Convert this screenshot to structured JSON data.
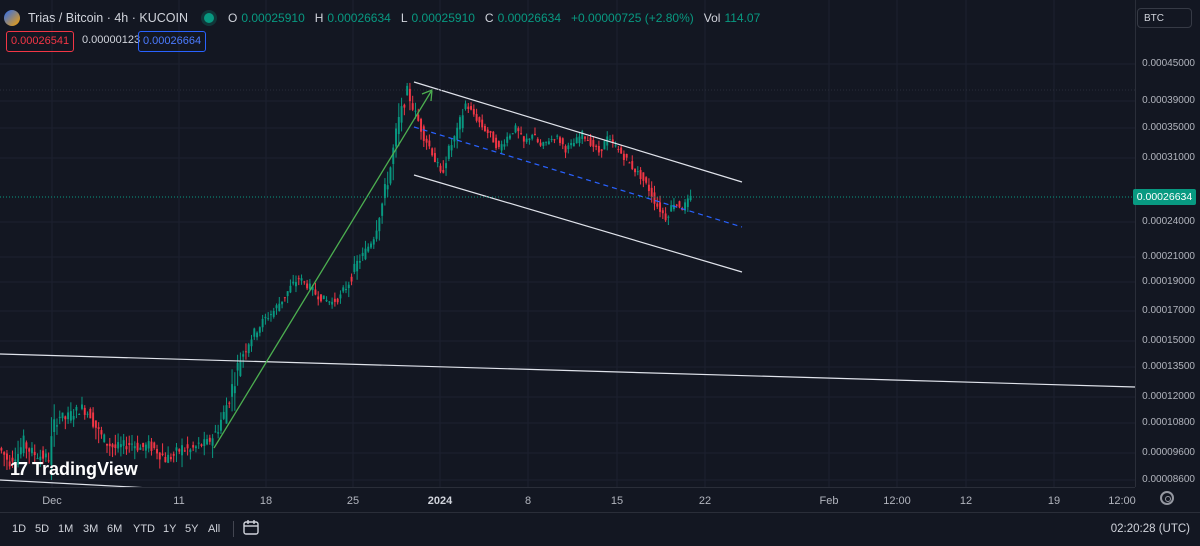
{
  "legend": {
    "symbol": "Trias / Bitcoin · 4h · KUCOIN",
    "o_label": "O",
    "o_value": "0.00025910",
    "h_label": "H",
    "h_value": "0.00026634",
    "l_label": "L",
    "l_value": "0.00025910",
    "c_label": "C",
    "c_value": "0.00026634",
    "change": "+0.00000725 (+2.80%)",
    "vol_label": "Vol",
    "vol_value": "114.07"
  },
  "quote": {
    "bid": "0.00026541",
    "spread": "0.00000123",
    "ask": "0.00026664"
  },
  "currency_button": "BTC",
  "current_price": "0.00026634",
  "watermark": "TradingView",
  "clock": "02:20:28 (UTC)",
  "timeframes": [
    "1D",
    "5D",
    "1M",
    "3M",
    "6M",
    "YTD",
    "1Y",
    "5Y",
    "All"
  ],
  "colors": {
    "up": "#089981",
    "down": "#f23645",
    "background": "#131722",
    "arrow": "#4caf50",
    "midline": "#2962ff"
  },
  "icons": {
    "settings": "gear-icon",
    "goto_date": "calendar-icon"
  },
  "chart_data": {
    "type": "candlestick",
    "symbol": "Trias / Bitcoin",
    "interval": "4h",
    "exchange": "KUCOIN",
    "y_ticks": [
      "0.00045000",
      "0.00039000",
      "0.00035000",
      "0.00031000",
      "0.00024000",
      "0.00021000",
      "0.00019000",
      "0.00017000",
      "0.00015000",
      "0.00013500",
      "0.00012000",
      "0.00010800",
      "0.00009600",
      "0.00008600"
    ],
    "x_ticks": [
      {
        "label": "Dec",
        "bold": false
      },
      {
        "label": "11",
        "bold": false
      },
      {
        "label": "18",
        "bold": false
      },
      {
        "label": "25",
        "bold": false
      },
      {
        "label": "2024",
        "bold": true
      },
      {
        "label": "8",
        "bold": false
      },
      {
        "label": "15",
        "bold": false
      },
      {
        "label": "22",
        "bold": false
      },
      {
        "label": "Feb",
        "bold": false
      },
      {
        "label": "12:00",
        "bold": false
      },
      {
        "label": "12",
        "bold": false
      },
      {
        "label": "19",
        "bold": false
      },
      {
        "label": "12:00",
        "bold": false
      }
    ],
    "price_path": [
      [
        9.8e-05,
        9.4e-05
      ],
      [
        9.2e-05,
        9.6e-05
      ],
      [
        9.4e-05,
        0.0001
      ],
      [
        0.0001,
        9.6e-05
      ],
      [
        9.6e-05,
        9.5e-05
      ],
      [
        9.5e-05,
        9.4e-05
      ],
      [
        9.4e-05,
        0.000112
      ],
      [
        0.000112,
        0.00011
      ],
      [
        0.00011,
        0.000113
      ],
      [
        0.000113,
        0.000115
      ],
      [
        0.000115,
        0.000112
      ],
      [
        0.000112,
        0.000104
      ],
      [
        0.000104,
        0.0001
      ],
      [
        0.0001,
        9.8e-05
      ],
      [
        9.8e-05,
        9.9e-05
      ],
      [
        9.9e-05,
        0.0001
      ],
      [
        0.0001,
        9.8e-05
      ],
      [
        9.8e-05,
        9.9e-05
      ],
      [
        9.9e-05,
        9.7e-05
      ],
      [
        9.7e-05,
        9.4e-05
      ],
      [
        9.4e-05,
        9.5e-05
      ],
      [
        9.5e-05,
        9.8e-05
      ],
      [
        9.8e-05,
        9.7e-05
      ],
      [
        9.7e-05,
        9.9e-05
      ],
      [
        9.9e-05,
        0.0001
      ],
      [
        0.0001,
        0.000104
      ],
      [
        0.000104,
        0.000112
      ],
      [
        0.000112,
        0.000125
      ],
      [
        0.000125,
        0.00014
      ],
      [
        0.00014,
        0.00015
      ],
      [
        0.00015,
        0.000158
      ],
      [
        0.000158,
        0.000165
      ],
      [
        0.000165,
        0.00017
      ],
      [
        0.00017,
        0.000178
      ],
      [
        0.000178,
        0.000186
      ],
      [
        0.000186,
        0.000193
      ],
      [
        0.000193,
        0.000188
      ],
      [
        0.000188,
        0.000182
      ],
      [
        0.000182,
        0.000178
      ],
      [
        0.000178,
        0.000176
      ],
      [
        0.000176,
        0.00018
      ],
      [
        0.00018,
        0.00019
      ],
      [
        0.00019,
        0.000205
      ],
      [
        0.000205,
        0.000215
      ],
      [
        0.000215,
        0.000228
      ],
      [
        0.000228,
        0.00026
      ],
      [
        0.00026,
        0.0003
      ],
      [
        0.0003,
        0.00036
      ],
      [
        0.00036,
        0.000405
      ],
      [
        0.000405,
        0.00037
      ],
      [
        0.00037,
        0.00034
      ],
      [
        0.00034,
        0.000318
      ],
      [
        0.000318,
        0.00029
      ],
      [
        0.00029,
        0.00032
      ],
      [
        0.00032,
        0.000345
      ],
      [
        0.000345,
        0.000385
      ],
      [
        0.000385,
        0.00037
      ],
      [
        0.00037,
        0.000352
      ],
      [
        0.000352,
        0.00034
      ],
      [
        0.00034,
        0.000322
      ],
      [
        0.000322,
        0.000338
      ],
      [
        0.000338,
        0.00035
      ],
      [
        0.00035,
        0.00033
      ],
      [
        0.00033,
        0.000342
      ],
      [
        0.000342,
        0.000325
      ],
      [
        0.000325,
        0.000334
      ],
      [
        0.000334,
        0.000338
      ],
      [
        0.000338,
        0.000322
      ],
      [
        0.000322,
        0.00033
      ],
      [
        0.00033,
        0.000342
      ],
      [
        0.000342,
        0.00033
      ],
      [
        0.00033,
        0.000318
      ],
      [
        0.000318,
        0.000336
      ],
      [
        0.000336,
        0.000325
      ],
      [
        0.000325,
        0.000312
      ],
      [
        0.000312,
        0.0003
      ],
      [
        0.0003,
        0.00029
      ],
      [
        0.00029,
        0.000276
      ],
      [
        0.000276,
        0.000258
      ],
      [
        0.000258,
        0.000245
      ],
      [
        0.000245,
        0.000262
      ],
      [
        0.000262,
        0.000255
      ],
      [
        0.000255,
        0.000266
      ]
    ],
    "drawings": [
      "descending parallel channel (upper, median dashed, lower)",
      "long horizontal trend line",
      "rising arrow from 11 Dec low to 2024 high"
    ],
    "grid": true
  }
}
